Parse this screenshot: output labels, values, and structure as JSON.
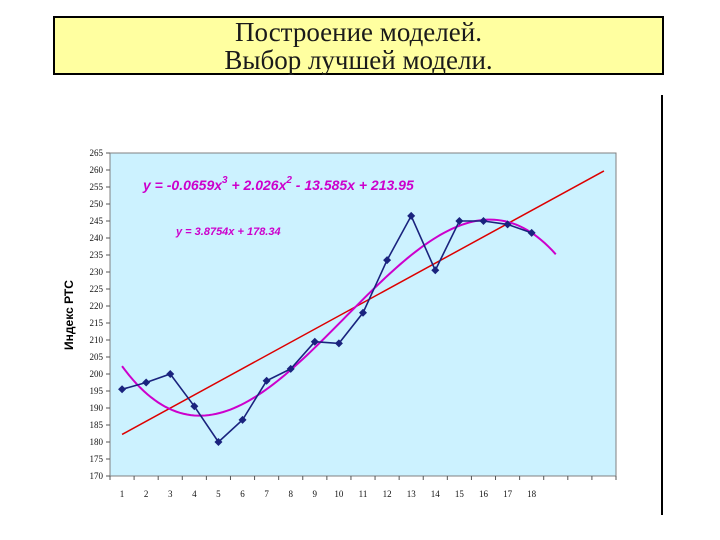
{
  "slide": {
    "title_line1": "Построение моделей.",
    "title_line2": "Выбор лучшей модели."
  },
  "chart_data": {
    "type": "line",
    "title": "",
    "ylabel": "Индекс РТС",
    "xlabel": "",
    "ylim": [
      170,
      265
    ],
    "ytick_step": 5,
    "xlim": [
      0.5,
      21.5
    ],
    "x": [
      1,
      2,
      3,
      4,
      5,
      6,
      7,
      8,
      9,
      10,
      11,
      12,
      13,
      14,
      15,
      16,
      17,
      18
    ],
    "x_tick_labels": [
      "1",
      "2",
      "3",
      "4",
      "5",
      "6",
      "7",
      "8",
      "9",
      "10",
      "11",
      "12",
      "13",
      "14",
      "15",
      "16",
      "17",
      "18"
    ],
    "grid": false,
    "plot_background": "#ccf2ff",
    "series": [
      {
        "kind": "data",
        "color": "#1a237e",
        "marker": "diamond",
        "values": [
          195.5,
          197.5,
          200,
          190.5,
          180,
          186.5,
          198,
          201.5,
          209.5,
          209,
          218,
          233.5,
          246.5,
          230.5,
          245,
          245,
          244,
          241.5
        ]
      },
      {
        "kind": "trend-linear",
        "color": "#dd0000",
        "equation": "y = 3.8754x + 178.34",
        "slope": 3.8754,
        "intercept": 178.34,
        "x_range": [
          1,
          21
        ]
      },
      {
        "kind": "trend-polynomial",
        "color": "#cc00cc",
        "equation_main": "y = -0.0659x",
        "exp3": "3",
        "equation_mid": " + 2.026x",
        "exp2": "2",
        "equation_tail": " - 13.585x + 213.95",
        "coefficients": [
          -0.0659,
          2.026,
          -13.585,
          213.95
        ],
        "x_range": [
          1,
          19
        ]
      }
    ]
  }
}
